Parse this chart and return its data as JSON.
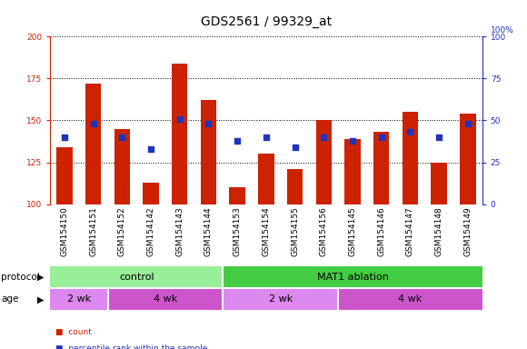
{
  "title": "GDS2561 / 99329_at",
  "samples": [
    "GSM154150",
    "GSM154151",
    "GSM154152",
    "GSM154142",
    "GSM154143",
    "GSM154144",
    "GSM154153",
    "GSM154154",
    "GSM154155",
    "GSM154156",
    "GSM154145",
    "GSM154146",
    "GSM154147",
    "GSM154148",
    "GSM154149"
  ],
  "bar_values": [
    134,
    172,
    145,
    113,
    184,
    162,
    110,
    130,
    121,
    150,
    139,
    143,
    155,
    125,
    154
  ],
  "blue_values": [
    140,
    148,
    140,
    133,
    151,
    148,
    138,
    140,
    134,
    140,
    138,
    140,
    143,
    140,
    148
  ],
  "ylim_left": [
    100,
    200
  ],
  "ylim_right": [
    0,
    100
  ],
  "yticks_left": [
    100,
    125,
    150,
    175,
    200
  ],
  "yticks_right": [
    0,
    25,
    50,
    75,
    100
  ],
  "bar_color": "#cc2200",
  "blue_color": "#2233bb",
  "grid_color": "#000000",
  "bg_color": "#ffffff",
  "tick_bg_color": "#c8c8c8",
  "protocol_control_color": "#99ee99",
  "protocol_ablation_color": "#44cc44",
  "age_light_color": "#dd88ee",
  "age_dark_color": "#cc55cc",
  "control_count": 6,
  "control_2wk": 2,
  "control_4wk": 4,
  "ablation_2wk": 4,
  "ablation_4wk": 5,
  "protocol_labels": [
    "control",
    "MAT1 ablation"
  ],
  "age_labels": [
    "2 wk",
    "4 wk",
    "2 wk",
    "4 wk"
  ],
  "legend_count_label": "count",
  "legend_pct_label": "percentile rank within the sample",
  "title_fontsize": 10,
  "tick_fontsize": 6.5,
  "label_fontsize": 8,
  "row_label_fontsize": 7.5
}
